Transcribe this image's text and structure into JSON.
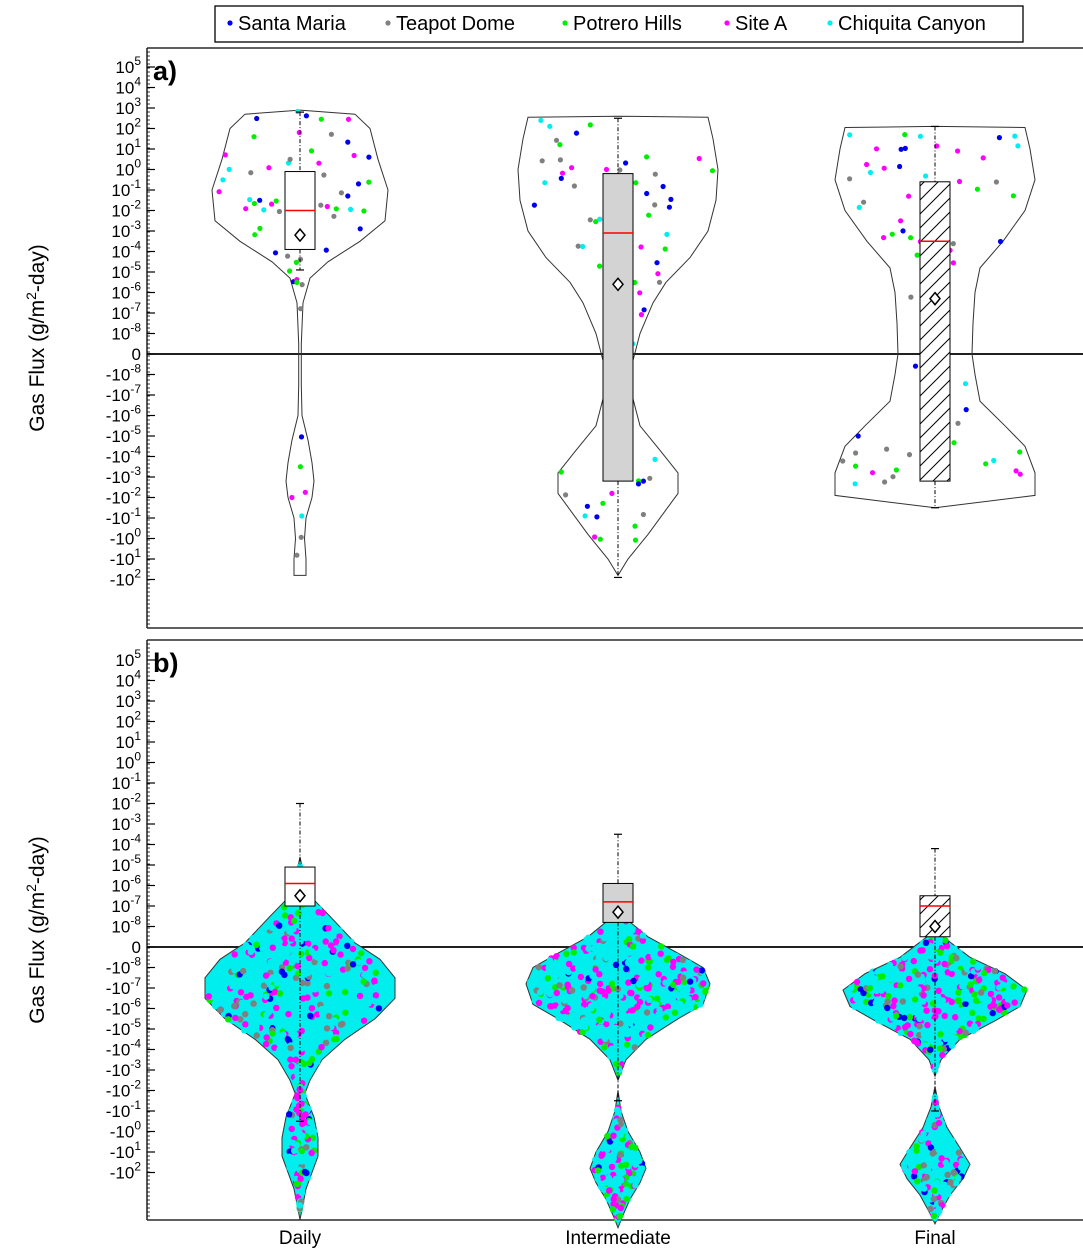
{
  "legend": {
    "entries": [
      {
        "name": "Santa Maria",
        "color": "#0000ee"
      },
      {
        "name": "Teapot Dome",
        "color": "#808080"
      },
      {
        "name": "Potrero Hills",
        "color": "#00ee00"
      },
      {
        "name": "Site A",
        "color": "#ff00ff"
      },
      {
        "name": "Chiquita Canyon",
        "color": "#00eeee"
      }
    ]
  },
  "y_axis_label": "Gas Flux (g/m2-day)",
  "y_axis_label_parts": {
    "pre": "Gas Flux (g/m",
    "sup": "2",
    "post": "-day)"
  },
  "y_tick_labels": [
    {
      "base": "10",
      "exp": "5"
    },
    {
      "base": "10",
      "exp": "4"
    },
    {
      "base": "10",
      "exp": "3"
    },
    {
      "base": "10",
      "exp": "2"
    },
    {
      "base": "10",
      "exp": "1"
    },
    {
      "base": "10",
      "exp": "0"
    },
    {
      "base": "10",
      "exp": "-1"
    },
    {
      "base": "10",
      "exp": "-2"
    },
    {
      "base": "10",
      "exp": "-3"
    },
    {
      "base": "10",
      "exp": "-4"
    },
    {
      "base": "10",
      "exp": "-5"
    },
    {
      "base": "10",
      "exp": "-6"
    },
    {
      "base": "10",
      "exp": "-7"
    },
    {
      "base": "10",
      "exp": "-8"
    },
    {
      "base": "0",
      "exp": ""
    },
    {
      "base": "-10",
      "exp": "-8"
    },
    {
      "base": "-10",
      "exp": "-7"
    },
    {
      "base": "-10",
      "exp": "-6"
    },
    {
      "base": "-10",
      "exp": "-5"
    },
    {
      "base": "-10",
      "exp": "-4"
    },
    {
      "base": "-10",
      "exp": "-3"
    },
    {
      "base": "-10",
      "exp": "-2"
    },
    {
      "base": "-10",
      "exp": "-1"
    },
    {
      "base": "-10",
      "exp": "0"
    },
    {
      "base": "-10",
      "exp": "1"
    },
    {
      "base": "-10",
      "exp": "2"
    }
  ],
  "categories": [
    "Daily",
    "Intermediate",
    "Final"
  ],
  "colors": {
    "median": "#ff0000",
    "box_fill_daily": "#ffffff",
    "box_fill_intermediate": "#d3d3d3",
    "box_fill_final": "#ffffff",
    "axis": "#000000"
  },
  "chart_data": [
    {
      "panel_label": "a)",
      "type": "violin",
      "categories": [
        "Daily",
        "Intermediate",
        "Final"
      ],
      "y_scale": "symmetric-log (signed 10^n)",
      "y_tick_labels_note": "same ticks as y_tick_labels",
      "series": [
        {
          "category": "Daily",
          "median": "1e-2",
          "mean": "1e-3",
          "q1": "1e-3",
          "q3": "1e0",
          "whisker_low": "1e-4",
          "whisker_high": "1e3",
          "range": [
            "-10^1",
            "1e3"
          ]
        },
        {
          "category": "Intermediate",
          "median": "1e-3",
          "mean": "1e-5",
          "q1": "-10^-3",
          "q3": "1e0",
          "whisker_low": "-10^1",
          "whisker_high": "1e2",
          "range": [
            "-10^1",
            "1e2"
          ]
        },
        {
          "category": "Final",
          "median": "1e-3",
          "mean": "1e-6",
          "q1": "-10^-3",
          "q3": "1e0",
          "whisker_low": "-10^-1",
          "whisker_high": "1e2",
          "range": [
            "-10^-1",
            "1e2"
          ]
        }
      ]
    },
    {
      "panel_label": "b)",
      "type": "violin",
      "categories": [
        "Daily",
        "Intermediate",
        "Final"
      ],
      "y_scale": "symmetric-log (signed 10^n)",
      "series": [
        {
          "category": "Daily",
          "median": "1e-5",
          "mean": "1e-6",
          "q1": "1e-6",
          "q3": "1e-4",
          "whisker_low": "-10^-3",
          "whisker_high": "1e0",
          "range": [
            "-10^-3",
            "1e0"
          ]
        },
        {
          "category": "Intermediate",
          "median": "1e-6",
          "mean": "1e-7",
          "q1": "1e-7",
          "q3": "1e-5",
          "whisker_low": "-10^-2",
          "whisker_high": "1e-1",
          "range": [
            "-10^-2",
            "1e-1"
          ]
        },
        {
          "category": "Final",
          "median": "1e-7",
          "mean": "1e-8",
          "q1": "1e-8",
          "q3": "1e-6",
          "whisker_low": "-10^-3",
          "whisker_high": "1e-2",
          "range": [
            "-10^-3",
            "1e-2"
          ]
        }
      ]
    }
  ]
}
